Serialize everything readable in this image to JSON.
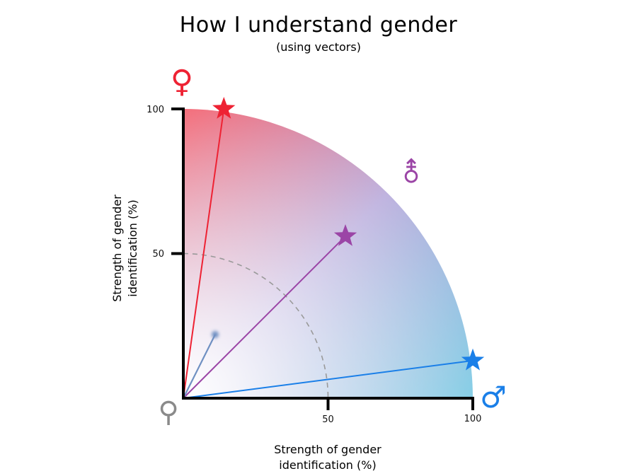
{
  "header": {
    "title": "How I understand gender",
    "subtitle": "(using vectors)"
  },
  "axes": {
    "xlabel_line1": "Strength of gender",
    "xlabel_line2": "identification (%)",
    "ylabel_line1": "Strength of gender",
    "ylabel_line2": "identification (%)",
    "x_ticks": [
      "50",
      "100"
    ],
    "y_ticks": [
      "50",
      "100"
    ],
    "range": [
      0,
      100
    ]
  },
  "symbols": {
    "female": "♀",
    "male": "♂",
    "neutral": "⚲",
    "androgyne": "⚨"
  },
  "colors": {
    "female": "#ee2233",
    "male": "#1a7fe8",
    "androgyne": "#9b45a6",
    "agender": "#6f90c2",
    "neutral": "#8a8a8a"
  },
  "chart_data": {
    "type": "vector",
    "xlim": [
      0,
      100
    ],
    "ylim": [
      0,
      100
    ],
    "vectors": [
      {
        "x": 14,
        "y": 100,
        "marker": "star",
        "color": "#ee2233"
      },
      {
        "x": 56,
        "y": 56,
        "marker": "star",
        "color": "#9b45a6"
      },
      {
        "x": 100,
        "y": 13,
        "marker": "star",
        "color": "#1a7fe8"
      },
      {
        "x": 11,
        "y": 22,
        "marker": "dot",
        "color": "#6f90c2"
      }
    ],
    "reference_arcs": [
      50
    ]
  }
}
